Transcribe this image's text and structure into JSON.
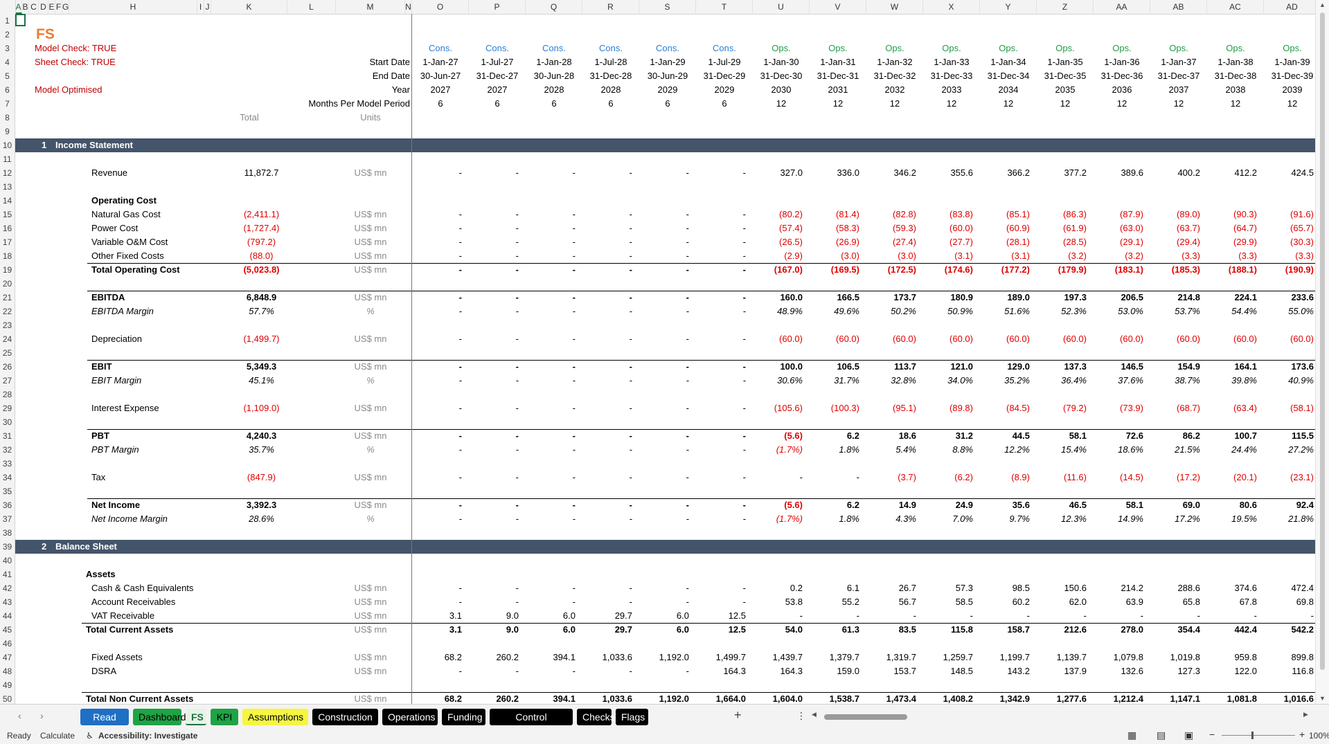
{
  "columns": [
    "A",
    "B",
    "C",
    "D",
    "E",
    "F",
    "G",
    "H",
    "I",
    "J",
    "K",
    "L",
    "M",
    "N",
    "O",
    "P",
    "Q",
    "R",
    "S",
    "T",
    "U",
    "V",
    "W",
    "X",
    "Y",
    "Z",
    "AA",
    "AB",
    "AC",
    "AD"
  ],
  "selected_column": "A",
  "header": {
    "title": "FS",
    "model_check": "Model Check: TRUE",
    "sheet_check": "Sheet Check: TRUE",
    "model_optimised": "Model Optimised",
    "labels": [
      "Start Date",
      "End Date",
      "Year",
      "Months Per Model Period"
    ],
    "total_label": "Total",
    "units_label": "Units",
    "phase": [
      "Cons.",
      "Cons.",
      "Cons.",
      "Cons.",
      "Cons.",
      "Cons.",
      "Ops.",
      "Ops.",
      "Ops.",
      "Ops.",
      "Ops.",
      "Ops.",
      "Ops.",
      "Ops.",
      "Ops.",
      "Ops."
    ],
    "start_date": [
      "1-Jan-27",
      "1-Jul-27",
      "1-Jan-28",
      "1-Jul-28",
      "1-Jan-29",
      "1-Jul-29",
      "1-Jan-30",
      "1-Jan-31",
      "1-Jan-32",
      "1-Jan-33",
      "1-Jan-34",
      "1-Jan-35",
      "1-Jan-36",
      "1-Jan-37",
      "1-Jan-38",
      "1-Jan-39"
    ],
    "end_date": [
      "30-Jun-27",
      "31-Dec-27",
      "30-Jun-28",
      "31-Dec-28",
      "30-Jun-29",
      "31-Dec-29",
      "31-Dec-30",
      "31-Dec-31",
      "31-Dec-32",
      "31-Dec-33",
      "31-Dec-34",
      "31-Dec-35",
      "31-Dec-36",
      "31-Dec-37",
      "31-Dec-38",
      "31-Dec-39"
    ],
    "year": [
      "2027",
      "2027",
      "2028",
      "2028",
      "2029",
      "2029",
      "2030",
      "2031",
      "2032",
      "2033",
      "2034",
      "2035",
      "2036",
      "2037",
      "2038",
      "2039"
    ],
    "months": [
      "6",
      "6",
      "6",
      "6",
      "6",
      "6",
      "12",
      "12",
      "12",
      "12",
      "12",
      "12",
      "12",
      "12",
      "12",
      "12"
    ]
  },
  "sections": {
    "income_statement": {
      "num": "1",
      "title": "Income Statement"
    },
    "balance_sheet": {
      "num": "2",
      "title": "Balance Sheet"
    }
  },
  "rows": [
    {
      "r": 12,
      "label": "Revenue",
      "indent": 2,
      "total": "11,872.7",
      "unit": "US$ mn",
      "values": [
        "-",
        "-",
        "-",
        "-",
        "-",
        "-",
        "327.0",
        "336.0",
        "346.2",
        "355.6",
        "366.2",
        "377.2",
        "389.6",
        "400.2",
        "412.2",
        "424.5"
      ]
    },
    {
      "r": 14,
      "label": "Operating Cost",
      "indent": 2,
      "bold": true
    },
    {
      "r": 15,
      "label": "Natural Gas Cost",
      "indent": 2,
      "total": "(2,411.1)",
      "unit": "US$ mn",
      "values": [
        "-",
        "-",
        "-",
        "-",
        "-",
        "-",
        "(80.2)",
        "(81.4)",
        "(82.8)",
        "(83.8)",
        "(85.1)",
        "(86.3)",
        "(87.9)",
        "(89.0)",
        "(90.3)",
        "(91.6)"
      ]
    },
    {
      "r": 16,
      "label": "Power Cost",
      "indent": 2,
      "total": "(1,727.4)",
      "unit": "US$ mn",
      "values": [
        "-",
        "-",
        "-",
        "-",
        "-",
        "-",
        "(57.4)",
        "(58.3)",
        "(59.3)",
        "(60.0)",
        "(60.9)",
        "(61.9)",
        "(63.0)",
        "(63.7)",
        "(64.7)",
        "(65.7)"
      ]
    },
    {
      "r": 17,
      "label": "Variable O&M Cost",
      "indent": 2,
      "total": "(797.2)",
      "unit": "US$ mn",
      "values": [
        "-",
        "-",
        "-",
        "-",
        "-",
        "-",
        "(26.5)",
        "(26.9)",
        "(27.4)",
        "(27.7)",
        "(28.1)",
        "(28.5)",
        "(29.1)",
        "(29.4)",
        "(29.9)",
        "(30.3)"
      ]
    },
    {
      "r": 18,
      "label": "Other Fixed Costs",
      "indent": 2,
      "total": "(88.0)",
      "unit": "US$ mn",
      "values": [
        "-",
        "-",
        "-",
        "-",
        "-",
        "-",
        "(2.9)",
        "(3.0)",
        "(3.0)",
        "(3.1)",
        "(3.1)",
        "(3.2)",
        "(3.2)",
        "(3.3)",
        "(3.3)",
        "(3.3)"
      ]
    },
    {
      "r": 19,
      "label": "Total Operating Cost",
      "indent": 2,
      "bold": true,
      "line": true,
      "total": "(5,023.8)",
      "unit": "US$ mn",
      "values": [
        "-",
        "-",
        "-",
        "-",
        "-",
        "-",
        "(167.0)",
        "(169.5)",
        "(172.5)",
        "(174.6)",
        "(177.2)",
        "(179.9)",
        "(183.1)",
        "(185.3)",
        "(188.1)",
        "(190.9)"
      ]
    },
    {
      "r": 21,
      "label": "EBITDA",
      "indent": 2,
      "bold": true,
      "line": true,
      "total": "6,848.9",
      "unit": "US$ mn",
      "values": [
        "-",
        "-",
        "-",
        "-",
        "-",
        "-",
        "160.0",
        "166.5",
        "173.7",
        "180.9",
        "189.0",
        "197.3",
        "206.5",
        "214.8",
        "224.1",
        "233.6"
      ]
    },
    {
      "r": 22,
      "label": "EBITDA Margin",
      "indent": 2,
      "italic": true,
      "total": "57.7%",
      "unit": "%",
      "values": [
        "-",
        "-",
        "-",
        "-",
        "-",
        "-",
        "48.9%",
        "49.6%",
        "50.2%",
        "50.9%",
        "51.6%",
        "52.3%",
        "53.0%",
        "53.7%",
        "54.4%",
        "55.0%"
      ]
    },
    {
      "r": 24,
      "label": "Depreciation",
      "indent": 2,
      "total": "(1,499.7)",
      "unit": "US$ mn",
      "values": [
        "-",
        "-",
        "-",
        "-",
        "-",
        "-",
        "(60.0)",
        "(60.0)",
        "(60.0)",
        "(60.0)",
        "(60.0)",
        "(60.0)",
        "(60.0)",
        "(60.0)",
        "(60.0)",
        "(60.0)"
      ]
    },
    {
      "r": 26,
      "label": "EBIT",
      "indent": 2,
      "bold": true,
      "line": true,
      "total": "5,349.3",
      "unit": "US$ mn",
      "values": [
        "-",
        "-",
        "-",
        "-",
        "-",
        "-",
        "100.0",
        "106.5",
        "113.7",
        "121.0",
        "129.0",
        "137.3",
        "146.5",
        "154.9",
        "164.1",
        "173.6"
      ]
    },
    {
      "r": 27,
      "label": "EBIT Margin",
      "indent": 2,
      "italic": true,
      "total": "45.1%",
      "unit": "%",
      "values": [
        "-",
        "-",
        "-",
        "-",
        "-",
        "-",
        "30.6%",
        "31.7%",
        "32.8%",
        "34.0%",
        "35.2%",
        "36.4%",
        "37.6%",
        "38.7%",
        "39.8%",
        "40.9%"
      ]
    },
    {
      "r": 29,
      "label": "Interest Expense",
      "indent": 2,
      "total": "(1,109.0)",
      "unit": "US$ mn",
      "values": [
        "-",
        "-",
        "-",
        "-",
        "-",
        "-",
        "(105.6)",
        "(100.3)",
        "(95.1)",
        "(89.8)",
        "(84.5)",
        "(79.2)",
        "(73.9)",
        "(68.7)",
        "(63.4)",
        "(58.1)"
      ]
    },
    {
      "r": 31,
      "label": "PBT",
      "indent": 2,
      "bold": true,
      "line": true,
      "total": "4,240.3",
      "unit": "US$ mn",
      "values": [
        "-",
        "-",
        "-",
        "-",
        "-",
        "-",
        "(5.6)",
        "6.2",
        "18.6",
        "31.2",
        "44.5",
        "58.1",
        "72.6",
        "86.2",
        "100.7",
        "115.5"
      ]
    },
    {
      "r": 32,
      "label": "PBT Margin",
      "indent": 2,
      "italic": true,
      "total": "35.7%",
      "unit": "%",
      "values": [
        "-",
        "-",
        "-",
        "-",
        "-",
        "-",
        "(1.7%)",
        "1.8%",
        "5.4%",
        "8.8%",
        "12.2%",
        "15.4%",
        "18.6%",
        "21.5%",
        "24.4%",
        "27.2%"
      ]
    },
    {
      "r": 34,
      "label": "Tax",
      "indent": 2,
      "total": "(847.9)",
      "unit": "US$ mn",
      "values": [
        "-",
        "-",
        "-",
        "-",
        "-",
        "-",
        "-",
        "-",
        "(3.7)",
        "(6.2)",
        "(8.9)",
        "(11.6)",
        "(14.5)",
        "(17.2)",
        "(20.1)",
        "(23.1)"
      ]
    },
    {
      "r": 36,
      "label": "Net Income",
      "indent": 2,
      "bold": true,
      "line": true,
      "total": "3,392.3",
      "unit": "US$ mn",
      "values": [
        "-",
        "-",
        "-",
        "-",
        "-",
        "-",
        "(5.6)",
        "6.2",
        "14.9",
        "24.9",
        "35.6",
        "46.5",
        "58.1",
        "69.0",
        "80.6",
        "92.4"
      ]
    },
    {
      "r": 37,
      "label": "Net Income Margin",
      "indent": 2,
      "italic": true,
      "total": "28.6%",
      "unit": "%",
      "values": [
        "-",
        "-",
        "-",
        "-",
        "-",
        "-",
        "(1.7%)",
        "1.8%",
        "4.3%",
        "7.0%",
        "9.7%",
        "12.3%",
        "14.9%",
        "17.2%",
        "19.5%",
        "21.8%"
      ]
    },
    {
      "r": 41,
      "label": "Assets",
      "indent": 1,
      "bold": true
    },
    {
      "r": 42,
      "label": "Cash & Cash Equivalents",
      "indent": 2,
      "unit": "US$ mn",
      "values": [
        "-",
        "-",
        "-",
        "-",
        "-",
        "-",
        "0.2",
        "6.1",
        "26.7",
        "57.3",
        "98.5",
        "150.6",
        "214.2",
        "288.6",
        "374.6",
        "472.4"
      ]
    },
    {
      "r": 43,
      "label": "Account Receivables",
      "indent": 2,
      "unit": "US$ mn",
      "values": [
        "-",
        "-",
        "-",
        "-",
        "-",
        "-",
        "53.8",
        "55.2",
        "56.7",
        "58.5",
        "60.2",
        "62.0",
        "63.9",
        "65.8",
        "67.8",
        "69.8"
      ]
    },
    {
      "r": 44,
      "label": "VAT Receivable",
      "indent": 2,
      "unit": "US$ mn",
      "values": [
        "3.1",
        "9.0",
        "6.0",
        "29.7",
        "6.0",
        "12.5",
        "-",
        "-",
        "-",
        "-",
        "-",
        "-",
        "-",
        "-",
        "-",
        "-"
      ]
    },
    {
      "r": 45,
      "label": "Total Current Assets",
      "indent": 1,
      "bold": true,
      "line": true,
      "unit": "US$ mn",
      "values": [
        "3.1",
        "9.0",
        "6.0",
        "29.7",
        "6.0",
        "12.5",
        "54.0",
        "61.3",
        "83.5",
        "115.8",
        "158.7",
        "212.6",
        "278.0",
        "354.4",
        "442.4",
        "542.2"
      ]
    },
    {
      "r": 47,
      "label": "Fixed Assets",
      "indent": 2,
      "unit": "US$ mn",
      "values": [
        "68.2",
        "260.2",
        "394.1",
        "1,033.6",
        "1,192.0",
        "1,499.7",
        "1,439.7",
        "1,379.7",
        "1,319.7",
        "1,259.7",
        "1,199.7",
        "1,139.7",
        "1,079.8",
        "1,019.8",
        "959.8",
        "899.8"
      ]
    },
    {
      "r": 48,
      "label": "DSRA",
      "indent": 2,
      "unit": "US$ mn",
      "values": [
        "-",
        "-",
        "-",
        "-",
        "-",
        "164.3",
        "164.3",
        "159.0",
        "153.7",
        "148.5",
        "143.2",
        "137.9",
        "132.6",
        "127.3",
        "122.0",
        "116.8"
      ]
    },
    {
      "r": 50,
      "label": "Total Non Current Assets",
      "indent": 1,
      "bold": true,
      "line": true,
      "unit": "US$ mn",
      "values": [
        "68.2",
        "260.2",
        "394.1",
        "1,033.6",
        "1,192.0",
        "1,664.0",
        "1,604.0",
        "1,538.7",
        "1,473.4",
        "1,408.2",
        "1,342.9",
        "1,277.6",
        "1,212.4",
        "1,147.1",
        "1,081.8",
        "1,016.6"
      ]
    }
  ],
  "tabs": [
    {
      "label": "Read Me",
      "bg": "#1f6fc5",
      "fg": "#ffffff"
    },
    {
      "label": "Dashboard",
      "bg": "#1ea345",
      "fg": "#000000"
    },
    {
      "label": "FS",
      "bg": "#e6f3e6",
      "fg": "#1e7145",
      "active": true
    },
    {
      "label": "KPI",
      "bg": "#1ea345",
      "fg": "#000000"
    },
    {
      "label": "Assumptions",
      "bg": "#f5f542",
      "fg": "#000000"
    },
    {
      "label": "Construction",
      "bg": "#000000",
      "fg": "#ffffff"
    },
    {
      "label": "Operations",
      "bg": "#000000",
      "fg": "#ffffff"
    },
    {
      "label": "Funding",
      "bg": "#000000",
      "fg": "#ffffff"
    },
    {
      "label": "Control Accounts",
      "bg": "#000000",
      "fg": "#ffffff"
    },
    {
      "label": "Checks",
      "bg": "#000000",
      "fg": "#ffffff"
    },
    {
      "label": "Flags",
      "bg": "#000000",
      "fg": "#ffffff"
    }
  ],
  "add_sheet": "+",
  "more_options": "⋮",
  "status": {
    "ready": "Ready",
    "calculate": "Calculate",
    "accessibility": "Accessibility: Investigate",
    "zoom": "100%"
  }
}
